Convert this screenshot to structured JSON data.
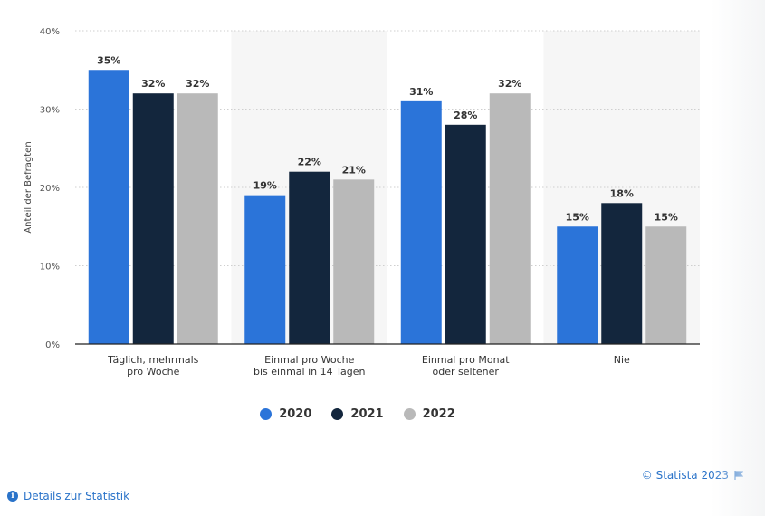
{
  "chart_data": {
    "type": "bar",
    "categories": [
      [
        "Täglich, mehrmals",
        "pro Woche"
      ],
      [
        "Einmal pro Woche",
        "bis einmal in 14 Tagen"
      ],
      [
        "Einmal pro Monat",
        "oder seltener"
      ],
      [
        "Nie"
      ]
    ],
    "series": [
      {
        "name": "2020",
        "values": [
          35,
          19,
          31,
          15
        ],
        "color": "#2b74d9"
      },
      {
        "name": "2021",
        "values": [
          32,
          22,
          28,
          18
        ],
        "color": "#13263d"
      },
      {
        "name": "2022",
        "values": [
          32,
          21,
          32,
          15
        ],
        "color": "#b9b9b9"
      }
    ],
    "value_labels": [
      [
        "35%",
        "19%",
        "31%",
        "15%"
      ],
      [
        "32%",
        "22%",
        "28%",
        "18%"
      ],
      [
        "32%",
        "21%",
        "32%",
        "15%"
      ]
    ],
    "ylabel": "Anteil der Befragten",
    "ylim": [
      0,
      40
    ],
    "yticks": [
      0,
      10,
      20,
      30,
      40
    ],
    "ytick_labels": [
      "0%",
      "10%",
      "20%",
      "30%",
      "40%"
    ],
    "grid": true,
    "legend_position": "bottom"
  },
  "legend": [
    {
      "label": "2020",
      "color": "#2b74d9"
    },
    {
      "label": "2021",
      "color": "#13263d"
    },
    {
      "label": "2022",
      "color": "#b9b9b9"
    }
  ],
  "footer": {
    "credit": "© Statista 2023",
    "details_link": "Details zur Statistik"
  }
}
